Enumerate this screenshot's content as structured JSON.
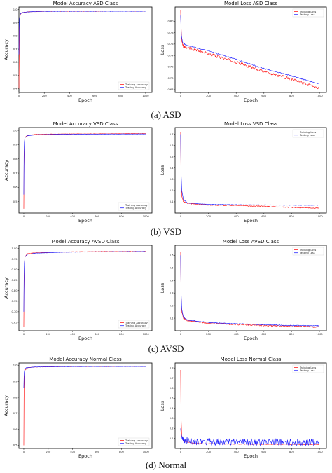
{
  "captions": [
    "(a) ASD",
    "(b) VSD",
    "(c) AVSD",
    "(d) Normal"
  ],
  "colors": {
    "training": "#ff2020",
    "testing": "#2626ff"
  },
  "chart_data": [
    {
      "type": "line",
      "metric": "accuracy",
      "title": "Model Accuracy ASD Class",
      "xlabel": "Epoch",
      "ylabel": "Accuracy",
      "xlim": [
        0,
        1050
      ],
      "ylim": [
        0.37,
        1.02
      ],
      "xticks": [
        0,
        200,
        400,
        600,
        800,
        1000
      ],
      "yticks": [
        0.4,
        0.5,
        0.6,
        0.7,
        0.8,
        0.9,
        1.0
      ],
      "ytick_labels": [
        "0.4",
        "0.5",
        "0.6",
        "0.7",
        "0.8",
        "0.9",
        "1.0"
      ],
      "legend": "bottom-right",
      "series": [
        {
          "name": "Training Accuracy",
          "points": [
            [
              0,
              0.4
            ],
            [
              2,
              0.6
            ],
            [
              5,
              0.9
            ],
            [
              10,
              0.96
            ],
            [
              20,
              0.975
            ],
            [
              40,
              0.98
            ],
            [
              100,
              0.985
            ],
            [
              200,
              0.987
            ],
            [
              400,
              0.988
            ],
            [
              600,
              0.988
            ],
            [
              800,
              0.989
            ],
            [
              1000,
              0.989
            ]
          ],
          "noise": 0.002
        },
        {
          "name": "Testing Accuracy",
          "points": [
            [
              0,
              0.66
            ],
            [
              2,
              0.85
            ],
            [
              5,
              0.93
            ],
            [
              10,
              0.965
            ],
            [
              20,
              0.975
            ],
            [
              40,
              0.98
            ],
            [
              100,
              0.985
            ],
            [
              200,
              0.987
            ],
            [
              400,
              0.988
            ],
            [
              600,
              0.988
            ],
            [
              800,
              0.988
            ],
            [
              1000,
              0.988
            ]
          ],
          "noise": 0.002
        }
      ]
    },
    {
      "type": "line",
      "metric": "loss",
      "title": "Model Loss ASD Class",
      "xlabel": "Epoch",
      "ylabel": "Loss",
      "xlim": [
        -40,
        1050
      ],
      "ylim": [
        0.675,
        0.825
      ],
      "xticks": [
        0,
        200,
        400,
        600,
        800,
        1000
      ],
      "yticks": [
        0.68,
        0.7,
        0.72,
        0.74,
        0.76,
        0.78,
        0.8
      ],
      "ytick_labels": [
        "0.68",
        "0.70",
        "0.72",
        "0.74",
        "0.76",
        "0.78",
        "0.80"
      ],
      "legend": "top-right",
      "series": [
        {
          "name": "Training Loss",
          "points": [
            [
              0,
              0.82
            ],
            [
              3,
              0.79
            ],
            [
              8,
              0.765
            ],
            [
              20,
              0.756
            ],
            [
              50,
              0.754
            ],
            [
              200,
              0.743
            ],
            [
              400,
              0.728
            ],
            [
              600,
              0.712
            ],
            [
              800,
              0.698
            ],
            [
              900,
              0.69
            ],
            [
              1000,
              0.682
            ]
          ],
          "noise": 0.0025
        },
        {
          "name": "Testing Loss",
          "points": [
            [
              0,
              0.81
            ],
            [
              5,
              0.775
            ],
            [
              15,
              0.762
            ],
            [
              40,
              0.758
            ],
            [
              200,
              0.748
            ],
            [
              400,
              0.733
            ],
            [
              600,
              0.717
            ],
            [
              800,
              0.704
            ],
            [
              1000,
              0.69
            ]
          ],
          "noise": 0.0008
        }
      ]
    },
    {
      "type": "line",
      "metric": "accuracy",
      "title": "Model Accuracy VSD Class",
      "xlabel": "Epoch",
      "ylabel": "Accuracy",
      "xlim": [
        -40,
        1050
      ],
      "ylim": [
        0.42,
        1.02
      ],
      "xticks": [
        0,
        200,
        400,
        600,
        800,
        1000
      ],
      "yticks": [
        0.5,
        0.6,
        0.7,
        0.8,
        0.9,
        1.0
      ],
      "ytick_labels": [
        "0.5",
        "0.6",
        "0.7",
        "0.8",
        "0.9",
        "1.0"
      ],
      "legend": "bottom-right",
      "series": [
        {
          "name": "Training Accuracy",
          "points": [
            [
              0,
              0.45
            ],
            [
              2,
              0.75
            ],
            [
              5,
              0.9
            ],
            [
              10,
              0.95
            ],
            [
              30,
              0.965
            ],
            [
              100,
              0.972
            ],
            [
              300,
              0.975
            ],
            [
              600,
              0.976
            ],
            [
              1000,
              0.978
            ]
          ],
          "noise": 0.0015
        },
        {
          "name": "Testing Accuracy",
          "points": [
            [
              0,
              0.55
            ],
            [
              2,
              0.82
            ],
            [
              5,
              0.92
            ],
            [
              10,
              0.95
            ],
            [
              30,
              0.962
            ],
            [
              100,
              0.97
            ],
            [
              300,
              0.973
            ],
            [
              600,
              0.974
            ],
            [
              1000,
              0.975
            ]
          ],
          "noise": 0.001
        }
      ]
    },
    {
      "type": "line",
      "metric": "loss",
      "title": "Model Loss VSD Class",
      "xlabel": "Epoch",
      "ylabel": "Loss",
      "xlim": [
        -40,
        1050
      ],
      "ylim": [
        0.0,
        0.76
      ],
      "xticks": [
        0,
        200,
        400,
        600,
        800,
        1000
      ],
      "yticks": [
        0.1,
        0.2,
        0.3,
        0.4,
        0.5,
        0.6,
        0.7
      ],
      "ytick_labels": [
        "0.1",
        "0.2",
        "0.3",
        "0.4",
        "0.5",
        "0.6",
        "0.7"
      ],
      "legend": "top-right",
      "series": [
        {
          "name": "Training Loss",
          "points": [
            [
              0,
              0.72
            ],
            [
              3,
              0.3
            ],
            [
              8,
              0.15
            ],
            [
              20,
              0.1
            ],
            [
              50,
              0.085
            ],
            [
              200,
              0.072
            ],
            [
              400,
              0.066
            ],
            [
              600,
              0.06
            ],
            [
              800,
              0.05
            ],
            [
              1000,
              0.042
            ]
          ],
          "noise": 0.004
        },
        {
          "name": "Testing Loss",
          "points": [
            [
              0,
              0.7
            ],
            [
              3,
              0.35
            ],
            [
              8,
              0.2
            ],
            [
              20,
              0.12
            ],
            [
              50,
              0.09
            ],
            [
              200,
              0.077
            ],
            [
              400,
              0.074
            ],
            [
              600,
              0.072
            ],
            [
              800,
              0.07
            ],
            [
              1000,
              0.07
            ]
          ],
          "noise": 0.002
        }
      ]
    },
    {
      "type": "line",
      "metric": "accuracy",
      "title": "Model Accuracy AVSD Class",
      "xlabel": "Epoch",
      "ylabel": "Accuracy",
      "xlim": [
        -40,
        1050
      ],
      "ylim": [
        0.61,
        1.015
      ],
      "xticks": [
        0,
        200,
        400,
        600,
        800,
        1000
      ],
      "yticks": [
        0.65,
        0.7,
        0.75,
        0.8,
        0.85,
        0.9,
        0.95,
        1.0
      ],
      "ytick_labels": [
        "0.65",
        "0.70",
        "0.75",
        "0.80",
        "0.85",
        "0.90",
        "0.95",
        "1.00"
      ],
      "legend": "bottom-right",
      "series": [
        {
          "name": "Training Accuracy",
          "points": [
            [
              0,
              0.63
            ],
            [
              2,
              0.8
            ],
            [
              5,
              0.92
            ],
            [
              10,
              0.96
            ],
            [
              30,
              0.975
            ],
            [
              100,
              0.98
            ],
            [
              300,
              0.983
            ],
            [
              600,
              0.985
            ],
            [
              1000,
              0.986
            ]
          ],
          "noise": 0.0012
        },
        {
          "name": "Testing Accuracy",
          "points": [
            [
              0,
              0.7
            ],
            [
              2,
              0.85
            ],
            [
              5,
              0.93
            ],
            [
              10,
              0.96
            ],
            [
              30,
              0.972
            ],
            [
              100,
              0.978
            ],
            [
              300,
              0.982
            ],
            [
              600,
              0.984
            ],
            [
              1000,
              0.985
            ]
          ],
          "noise": 0.001
        }
      ]
    },
    {
      "type": "line",
      "metric": "loss",
      "title": "Model Loss AVSD Class",
      "xlabel": "Epoch",
      "ylabel": "Loss",
      "xlim": [
        -40,
        1050
      ],
      "ylim": [
        0.0,
        0.68
      ],
      "xticks": [
        0,
        200,
        400,
        600,
        800,
        1000
      ],
      "yticks": [
        0.1,
        0.2,
        0.3,
        0.4,
        0.5,
        0.6
      ],
      "ytick_labels": [
        "0.1",
        "0.2",
        "0.3",
        "0.4",
        "0.5",
        "0.6"
      ],
      "legend": "top-right",
      "series": [
        {
          "name": "Training Loss",
          "points": [
            [
              0,
              0.63
            ],
            [
              3,
              0.28
            ],
            [
              8,
              0.15
            ],
            [
              20,
              0.1
            ],
            [
              50,
              0.08
            ],
            [
              200,
              0.06
            ],
            [
              400,
              0.05
            ],
            [
              600,
              0.042
            ],
            [
              800,
              0.035
            ],
            [
              1000,
              0.03
            ]
          ],
          "noise": 0.005
        },
        {
          "name": "Testing Loss",
          "points": [
            [
              0,
              0.6
            ],
            [
              3,
              0.3
            ],
            [
              8,
              0.17
            ],
            [
              20,
              0.11
            ],
            [
              50,
              0.085
            ],
            [
              200,
              0.065
            ],
            [
              400,
              0.055
            ],
            [
              600,
              0.048
            ],
            [
              800,
              0.042
            ],
            [
              1000,
              0.04
            ]
          ],
          "noise": 0.003
        }
      ]
    },
    {
      "type": "line",
      "metric": "accuracy",
      "title": "Model Accuracy Normal Class",
      "xlabel": "Epoch",
      "ylabel": "Accuracy",
      "xlim": [
        -40,
        1050
      ],
      "ylim": [
        0.48,
        1.015
      ],
      "xticks": [
        0,
        200,
        400,
        600,
        800,
        1000
      ],
      "yticks": [
        0.5,
        0.6,
        0.7,
        0.8,
        0.9,
        1.0
      ],
      "ytick_labels": [
        "0.5",
        "0.6",
        "0.7",
        "0.8",
        "0.9",
        "1.0"
      ],
      "legend": "bottom-right",
      "series": [
        {
          "name": "Training Accuracy",
          "points": [
            [
              0,
              0.5
            ],
            [
              2,
              0.8
            ],
            [
              5,
              0.93
            ],
            [
              10,
              0.97
            ],
            [
              30,
              0.985
            ],
            [
              100,
              0.99
            ],
            [
              300,
              0.992
            ],
            [
              600,
              0.993
            ],
            [
              1000,
              0.994
            ]
          ],
          "noise": 0.0012
        },
        {
          "name": "Testing Accuracy",
          "points": [
            [
              0,
              0.86
            ],
            [
              3,
              0.95
            ],
            [
              8,
              0.975
            ],
            [
              20,
              0.985
            ],
            [
              100,
              0.99
            ],
            [
              300,
              0.992
            ],
            [
              600,
              0.993
            ],
            [
              1000,
              0.993
            ]
          ],
          "noise": 0.001
        }
      ]
    },
    {
      "type": "line",
      "metric": "loss",
      "title": "Model Loss Normal Class",
      "xlabel": "Epoch",
      "ylabel": "Loss",
      "xlim": [
        -40,
        1050
      ],
      "ylim": [
        0.0,
        0.85
      ],
      "xticks": [
        0,
        200,
        400,
        600,
        800,
        1000
      ],
      "yticks": [
        0.1,
        0.2,
        0.3,
        0.4,
        0.5,
        0.6,
        0.7,
        0.8
      ],
      "ytick_labels": [
        "0.1",
        "0.2",
        "0.3",
        "0.4",
        "0.5",
        "0.6",
        "0.7",
        "0.8"
      ],
      "legend": "top-right",
      "series": [
        {
          "name": "Training Loss",
          "points": [
            [
              0,
              0.78
            ],
            [
              3,
              0.3
            ],
            [
              8,
              0.12
            ],
            [
              20,
              0.07
            ],
            [
              100,
              0.05
            ],
            [
              300,
              0.045
            ],
            [
              600,
              0.042
            ],
            [
              1000,
              0.04
            ]
          ],
          "noise": 0.003
        },
        {
          "name": "Testing Loss",
          "points": [
            [
              0,
              0.2
            ],
            [
              3,
              0.15
            ],
            [
              10,
              0.1
            ],
            [
              30,
              0.08
            ],
            [
              100,
              0.07
            ],
            [
              300,
              0.065
            ],
            [
              600,
              0.063
            ],
            [
              1000,
              0.062
            ]
          ],
          "noise": 0.035
        }
      ]
    }
  ]
}
